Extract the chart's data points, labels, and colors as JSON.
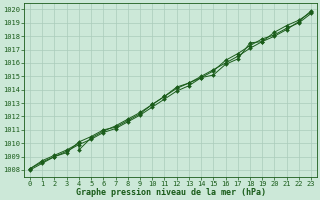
{
  "title": "Graphe pression niveau de la mer (hPa)",
  "x_min": 0,
  "x_max": 23,
  "y_min": 1008,
  "y_max": 1020,
  "background_color": "#cce8d8",
  "grid_color": "#aaccbb",
  "line_color": "#1a5c1a",
  "marker_color": "#1a5c1a",
  "tick_color": "#1a5c1a",
  "title_color": "#1a5c1a",
  "series": [
    {
      "x": [
        0,
        1,
        2,
        3,
        4,
        4,
        5,
        6,
        7,
        8,
        9,
        10,
        11,
        12,
        13,
        14,
        15,
        16,
        17,
        18,
        19,
        20,
        21,
        22,
        23
      ],
      "y": [
        1008.1,
        1008.7,
        1009.1,
        1009.5,
        1010.0,
        1009.5,
        1010.4,
        1010.9,
        1011.3,
        1011.8,
        1012.3,
        1012.9,
        1013.5,
        1014.2,
        1014.5,
        1014.9,
        1015.1,
        1015.9,
        1016.3,
        1017.5,
        1017.6,
        1018.3,
        1018.8,
        1019.2,
        1019.8
      ]
    },
    {
      "x": [
        0,
        1,
        2,
        3,
        4,
        5,
        6,
        7,
        8,
        9,
        10,
        11,
        12,
        13,
        14,
        15,
        16,
        17,
        18,
        19,
        20,
        21,
        22,
        23
      ],
      "y": [
        1008.1,
        1008.6,
        1009.0,
        1009.4,
        1009.9,
        1010.3,
        1010.8,
        1011.1,
        1011.6,
        1012.1,
        1012.7,
        1013.3,
        1013.9,
        1014.3,
        1014.9,
        1015.4,
        1016.2,
        1016.7,
        1017.3,
        1017.8,
        1018.1,
        1018.6,
        1019.0,
        1019.7
      ]
    },
    {
      "x": [
        0,
        1,
        2,
        3,
        4,
        5,
        6,
        7,
        8,
        9,
        10,
        11,
        12,
        13,
        14,
        15,
        16,
        17,
        18,
        19,
        20,
        21,
        22,
        23
      ],
      "y": [
        1008.0,
        1008.5,
        1009.0,
        1009.3,
        1010.1,
        1010.5,
        1011.0,
        1011.2,
        1011.7,
        1012.2,
        1012.9,
        1013.5,
        1014.1,
        1014.5,
        1015.0,
        1015.5,
        1016.0,
        1016.5,
        1017.1,
        1017.6,
        1018.0,
        1018.5,
        1019.1,
        1019.9
      ]
    }
  ],
  "yticks": [
    1008,
    1009,
    1010,
    1011,
    1012,
    1013,
    1014,
    1015,
    1016,
    1017,
    1018,
    1019,
    1020
  ],
  "xticks": [
    0,
    1,
    2,
    3,
    4,
    5,
    6,
    7,
    8,
    9,
    10,
    11,
    12,
    13,
    14,
    15,
    16,
    17,
    18,
    19,
    20,
    21,
    22,
    23
  ],
  "tick_fontsize": 5.0,
  "title_fontsize": 6.0,
  "linewidth": 0.7,
  "markersize": 2.0
}
